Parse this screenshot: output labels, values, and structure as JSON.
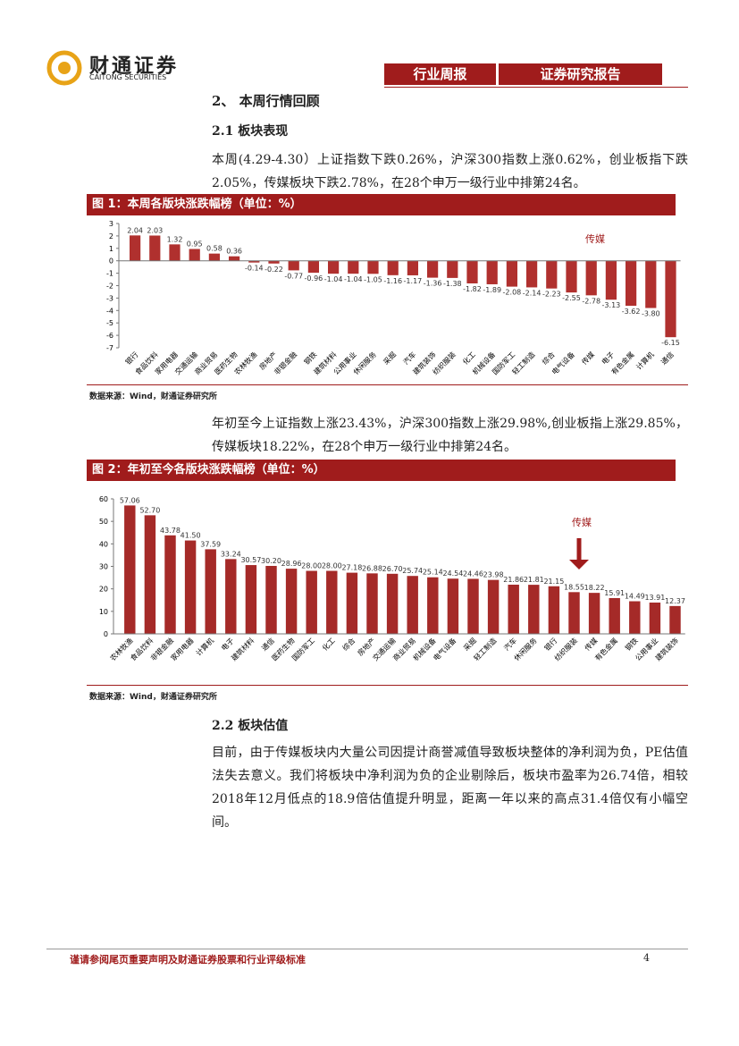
{
  "header": {
    "logo": "财通证券",
    "logo_en": "CAITONG SECURITIES",
    "tag1": "行业周报",
    "tag2": "证券研究报告"
  },
  "section_title": "2、 本周行情回顾",
  "sub1": "2.1  板块表现",
  "para1": "本周(4.29-4.30）上证指数下跌0.26%，沪深300指数上涨0.62%，创业板指下跌2.05%，传媒板块下跌2.78%，在28个申万一级行业中排第24名。",
  "para2": "年初至今上证指数上涨23.43%，沪深300指数上涨29.98%,创业板指上涨29.85%，传媒板块18.22%，在28个申万一级行业中排第24名。",
  "sub2": "2.2  板块估值",
  "para3": "目前，由于传媒板块内大量公司因提计商誉减值导致板块整体的净利润为负，PE估值法失去意义。我们将板块中净利润为负的企业剔除后，板块市盈率为26.74倍，相较2018年12月低点的18.9倍估值提升明显，距离一年以来的高点31.4倍仅有小幅空间。",
  "footer": "谨请参阅尾页重要声明及财通证券股票和行业评级标准",
  "page_number": "4",
  "chart_data": [
    {
      "type": "bar",
      "title": "图 1：本周各版块涨跌幅榜（单位：%）",
      "source": "数据来源：Wind，财通证券研究所",
      "annotation": "传媒",
      "color": "#b0302e",
      "categories": [
        "银行",
        "食品饮料",
        "家用电器",
        "交通运输",
        "商业贸易",
        "医药生物",
        "农林牧渔",
        "房地产",
        "非银金融",
        "钢铁",
        "建筑材料",
        "公用事业",
        "休闲服务",
        "采掘",
        "汽车",
        "建筑装饰",
        "纺织服装",
        "化工",
        "机械设备",
        "国防军工",
        "轻工制造",
        "综合",
        "电气设备",
        "传媒",
        "电子",
        "有色金属",
        "计算机",
        "通信"
      ],
      "values": [
        2.04,
        2.03,
        1.32,
        0.95,
        0.58,
        0.36,
        -0.14,
        -0.22,
        -0.77,
        -0.96,
        -1.04,
        -1.04,
        -1.05,
        -1.16,
        -1.17,
        -1.36,
        -1.38,
        -1.82,
        -1.89,
        -2.08,
        -2.14,
        -2.23,
        -2.55,
        -2.78,
        -3.13,
        -3.62,
        -3.8,
        -6.15
      ],
      "value_labels": [
        "2.04",
        "2.03",
        "1.32",
        "0.95",
        "0.58",
        "0.36",
        "-0.14",
        "-0.22",
        "-0.77",
        "-0.96",
        "-1.04",
        "-1.04",
        "-1.05",
        "-1.16",
        "-1.17",
        "-1.36",
        "-1.38",
        "-1.82",
        "-1.89",
        "-2.08",
        "-2.14",
        "-2.23",
        "-2.55",
        "-2.78",
        "-3.13",
        "-3.62",
        "-3.80",
        "-6.15"
      ],
      "ylim": [
        -7,
        3
      ],
      "yticks": [
        3,
        2,
        1,
        0,
        -1,
        -2,
        -3,
        -4,
        -5,
        -6,
        -7
      ]
    },
    {
      "type": "bar",
      "title": "图 2：年初至今各版块涨跌幅榜（单位：%）",
      "source": "数据来源：Wind，财通证券研究所",
      "annotation": "传媒",
      "color": "#a52a28",
      "categories": [
        "农林牧渔",
        "食品饮料",
        "非银金融",
        "家用电器",
        "计算机",
        "电子",
        "建筑材料",
        "通信",
        "医药生物",
        "国防军工",
        "化工",
        "综合",
        "房地产",
        "交通运输",
        "商业贸易",
        "机械设备",
        "电气设备",
        "采掘",
        "轻工制造",
        "汽车",
        "休闲服务",
        "银行",
        "纺织服装",
        "传媒",
        "有色金属",
        "钢铁",
        "公用事业",
        "建筑装饰"
      ],
      "values": [
        57.06,
        52.7,
        43.78,
        41.5,
        37.59,
        33.24,
        30.57,
        30.2,
        28.96,
        28,
        28,
        27.18,
        26.88,
        26.7,
        25.74,
        25.14,
        24.54,
        24.46,
        23.98,
        21.86,
        21.81,
        21.15,
        18.55,
        18.22,
        15.91,
        14.49,
        13.91,
        12.37
      ],
      "value_labels": [
        "57.06",
        "52.70",
        "43.78",
        "41.50",
        "37.59",
        "33.24",
        "30.57",
        "30.20",
        "28.96",
        "28.00",
        "28.00",
        "27.18",
        "26.88",
        "26.70",
        "25.74",
        "25.14",
        "24.54",
        "24.46",
        "23.98",
        "21.86",
        "21.81",
        "21.15",
        "18.55",
        "18.22",
        "15.91",
        "14.49",
        "13.91",
        "12.37"
      ],
      "ylim": [
        0,
        60
      ],
      "yticks": [
        0,
        10,
        20,
        30,
        40,
        50,
        60
      ]
    }
  ]
}
